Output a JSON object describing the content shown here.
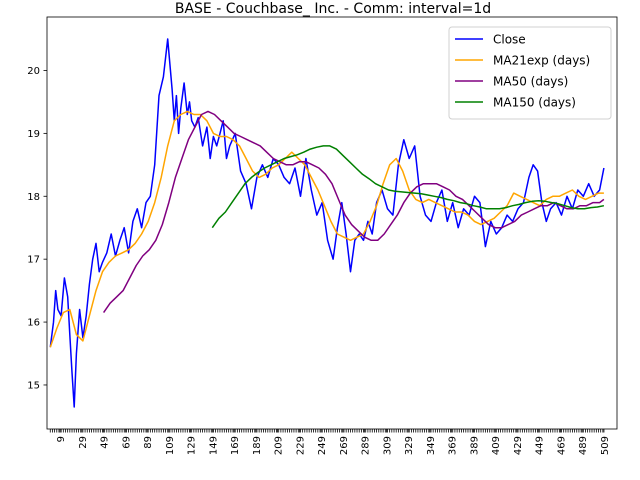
{
  "chart_data": {
    "type": "line",
    "title": "BASE - Couchbase_ Inc. - Comm: interval=1d",
    "xlabel": "",
    "ylabel": "",
    "xlim": [
      -3,
      521
    ],
    "ylim": [
      14.3,
      20.85
    ],
    "y_ticks": [
      15,
      16,
      17,
      18,
      19,
      20
    ],
    "x_ticks": [
      9,
      29,
      49,
      69,
      89,
      109,
      129,
      149,
      169,
      189,
      209,
      229,
      249,
      269,
      289,
      309,
      329,
      349,
      369,
      389,
      409,
      429,
      449,
      469,
      489,
      509
    ],
    "grid": false,
    "legend_position": "top-right",
    "series": [
      {
        "name": "Close",
        "color": "#0000ff",
        "x": [
          0,
          3,
          5,
          7,
          10,
          13,
          16,
          18,
          20,
          22,
          24,
          27,
          30,
          33,
          36,
          39,
          42,
          45,
          48,
          52,
          56,
          60,
          64,
          68,
          72,
          76,
          80,
          84,
          88,
          92,
          96,
          100,
          104,
          108,
          112,
          114,
          116,
          118,
          120,
          123,
          126,
          128,
          130,
          133,
          136,
          140,
          144,
          147,
          150,
          153,
          156,
          159,
          162,
          165,
          170,
          175,
          180,
          185,
          190,
          195,
          200,
          205,
          210,
          215,
          220,
          225,
          230,
          235,
          240,
          245,
          250,
          255,
          260,
          264,
          268,
          272,
          276,
          280,
          284,
          288,
          292,
          296,
          300,
          305,
          310,
          315,
          320,
          325,
          330,
          335,
          340,
          345,
          350,
          355,
          360,
          365,
          370,
          375,
          380,
          385,
          390,
          395,
          400,
          405,
          410,
          415,
          420,
          425,
          430,
          435,
          440,
          444,
          448,
          452,
          456,
          460,
          465,
          470,
          475,
          480,
          485,
          490,
          495,
          500,
          505,
          509
        ],
        "values": [
          15.6,
          16.0,
          16.5,
          16.2,
          16.1,
          16.7,
          16.4,
          15.8,
          15.2,
          14.65,
          15.5,
          16.2,
          15.75,
          16.1,
          16.6,
          17.0,
          17.25,
          16.8,
          16.95,
          17.1,
          17.4,
          17.05,
          17.3,
          17.5,
          17.1,
          17.6,
          17.8,
          17.5,
          17.9,
          18.0,
          18.5,
          19.6,
          19.9,
          20.5,
          19.7,
          19.2,
          19.6,
          19.0,
          19.4,
          19.8,
          19.3,
          19.5,
          19.2,
          19.1,
          19.25,
          18.8,
          19.1,
          18.6,
          18.95,
          18.8,
          19.0,
          19.2,
          18.6,
          18.8,
          19.0,
          18.4,
          18.2,
          17.8,
          18.3,
          18.5,
          18.3,
          18.6,
          18.5,
          18.3,
          18.2,
          18.45,
          18.0,
          18.6,
          18.1,
          17.7,
          17.9,
          17.3,
          17.0,
          17.5,
          17.9,
          17.4,
          16.8,
          17.3,
          17.4,
          17.3,
          17.6,
          17.4,
          17.9,
          18.1,
          17.8,
          17.7,
          18.5,
          18.9,
          18.6,
          18.8,
          18.0,
          17.7,
          17.6,
          17.9,
          18.1,
          17.6,
          17.9,
          17.5,
          17.8,
          17.7,
          18.0,
          17.9,
          17.2,
          17.6,
          17.4,
          17.5,
          17.7,
          17.6,
          17.8,
          17.9,
          18.3,
          18.5,
          18.4,
          17.9,
          17.6,
          17.8,
          17.9,
          17.7,
          18.0,
          17.8,
          18.1,
          18.0,
          18.2,
          18.0,
          18.1,
          18.45
        ]
      },
      {
        "name": "MA21exp (days)",
        "color": "#ffa500",
        "x": [
          0,
          6,
          12,
          18,
          24,
          30,
          36,
          42,
          48,
          54,
          60,
          66,
          72,
          78,
          84,
          90,
          96,
          102,
          108,
          114,
          120,
          126,
          132,
          138,
          144,
          150,
          156,
          162,
          168,
          174,
          180,
          186,
          192,
          198,
          204,
          210,
          216,
          222,
          228,
          234,
          240,
          246,
          252,
          258,
          264,
          270,
          276,
          282,
          288,
          294,
          300,
          306,
          312,
          318,
          324,
          330,
          336,
          342,
          348,
          354,
          360,
          366,
          372,
          378,
          384,
          390,
          396,
          402,
          408,
          414,
          420,
          426,
          432,
          438,
          444,
          450,
          456,
          462,
          468,
          474,
          480,
          486,
          492,
          498,
          504,
          509
        ],
        "values": [
          15.6,
          15.9,
          16.15,
          16.2,
          15.8,
          15.7,
          16.1,
          16.5,
          16.8,
          16.95,
          17.05,
          17.1,
          17.15,
          17.25,
          17.4,
          17.6,
          17.9,
          18.3,
          18.8,
          19.2,
          19.3,
          19.35,
          19.3,
          19.3,
          19.2,
          19.0,
          18.95,
          18.95,
          18.9,
          18.8,
          18.6,
          18.4,
          18.3,
          18.35,
          18.45,
          18.5,
          18.6,
          18.7,
          18.6,
          18.5,
          18.3,
          18.1,
          17.85,
          17.6,
          17.4,
          17.35,
          17.3,
          17.35,
          17.4,
          17.6,
          17.85,
          18.2,
          18.5,
          18.6,
          18.4,
          18.1,
          17.95,
          17.9,
          17.95,
          17.9,
          17.85,
          17.8,
          17.75,
          17.75,
          17.7,
          17.6,
          17.55,
          17.6,
          17.65,
          17.75,
          17.85,
          18.05,
          18.0,
          17.95,
          17.9,
          17.85,
          17.95,
          18.0,
          18.0,
          18.05,
          18.1,
          18.0,
          17.95,
          18.0,
          18.05,
          18.05
        ]
      },
      {
        "name": "MA50 (days)",
        "color": "#800080",
        "x": [
          49,
          55,
          61,
          67,
          73,
          79,
          85,
          91,
          97,
          103,
          109,
          115,
          121,
          127,
          133,
          139,
          145,
          151,
          157,
          163,
          169,
          175,
          181,
          187,
          193,
          199,
          205,
          211,
          217,
          223,
          229,
          235,
          241,
          247,
          253,
          259,
          265,
          271,
          277,
          283,
          289,
          295,
          301,
          307,
          313,
          319,
          325,
          331,
          337,
          343,
          349,
          355,
          361,
          367,
          373,
          379,
          385,
          391,
          397,
          403,
          409,
          415,
          421,
          427,
          433,
          439,
          445,
          451,
          457,
          463,
          469,
          475,
          481,
          487,
          493,
          499,
          505,
          509
        ],
        "values": [
          16.15,
          16.3,
          16.4,
          16.5,
          16.7,
          16.9,
          17.05,
          17.15,
          17.3,
          17.55,
          17.9,
          18.3,
          18.6,
          18.9,
          19.1,
          19.3,
          19.35,
          19.3,
          19.2,
          19.1,
          19.0,
          18.95,
          18.9,
          18.85,
          18.8,
          18.7,
          18.6,
          18.55,
          18.5,
          18.5,
          18.55,
          18.55,
          18.5,
          18.45,
          18.35,
          18.2,
          17.95,
          17.7,
          17.55,
          17.45,
          17.35,
          17.3,
          17.3,
          17.4,
          17.55,
          17.7,
          17.9,
          18.05,
          18.15,
          18.2,
          18.2,
          18.2,
          18.15,
          18.1,
          18.0,
          17.95,
          17.85,
          17.75,
          17.65,
          17.55,
          17.5,
          17.5,
          17.55,
          17.6,
          17.7,
          17.75,
          17.8,
          17.85,
          17.85,
          17.9,
          17.85,
          17.8,
          17.8,
          17.85,
          17.85,
          17.9,
          17.9,
          17.95
        ]
      },
      {
        "name": "MA150 (days)",
        "color": "#008000",
        "x": [
          149,
          155,
          161,
          167,
          173,
          179,
          185,
          191,
          197,
          203,
          209,
          215,
          221,
          227,
          233,
          239,
          245,
          251,
          257,
          263,
          269,
          275,
          281,
          287,
          293,
          299,
          305,
          311,
          317,
          323,
          329,
          335,
          341,
          347,
          353,
          359,
          365,
          371,
          377,
          383,
          389,
          395,
          401,
          407,
          413,
          419,
          425,
          431,
          437,
          443,
          449,
          455,
          461,
          467,
          473,
          479,
          485,
          491,
          497,
          503,
          509
        ],
        "values": [
          17.5,
          17.65,
          17.75,
          17.9,
          18.05,
          18.2,
          18.3,
          18.38,
          18.45,
          18.5,
          18.55,
          18.6,
          18.63,
          18.66,
          18.7,
          18.75,
          18.78,
          18.8,
          18.8,
          18.75,
          18.65,
          18.55,
          18.45,
          18.35,
          18.28,
          18.2,
          18.15,
          18.1,
          18.08,
          18.07,
          18.06,
          18.05,
          18.04,
          18.02,
          18.0,
          17.98,
          17.95,
          17.93,
          17.9,
          17.88,
          17.85,
          17.83,
          17.8,
          17.8,
          17.8,
          17.82,
          17.85,
          17.87,
          17.9,
          17.92,
          17.93,
          17.92,
          17.9,
          17.88,
          17.85,
          17.82,
          17.8,
          17.8,
          17.82,
          17.83,
          17.85
        ]
      }
    ]
  }
}
